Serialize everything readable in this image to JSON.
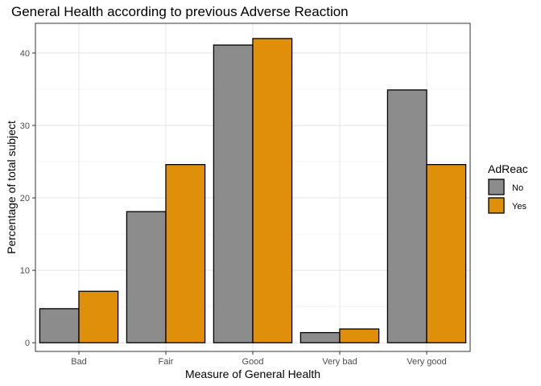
{
  "chart_data": {
    "type": "bar",
    "title": "General Health according to previous Adverse Reaction",
    "xlabel": "Measure of General Health",
    "ylabel": "Percentage of total subject",
    "categories": [
      "Bad",
      "Fair",
      "Good",
      "Very bad",
      "Very good"
    ],
    "series": [
      {
        "name": "No",
        "values": [
          4.7,
          18.1,
          41.1,
          1.4,
          34.9
        ],
        "color": "#8c8c8c"
      },
      {
        "name": "Yes",
        "values": [
          7.1,
          24.6,
          42.0,
          1.9,
          24.6
        ],
        "color": "#e08f0b"
      }
    ],
    "ylim": [
      -1.2,
      44.1
    ],
    "yticks": [
      0,
      10,
      20,
      30,
      40
    ],
    "grid": true,
    "legend": {
      "title": "AdReac",
      "position": "right"
    }
  }
}
